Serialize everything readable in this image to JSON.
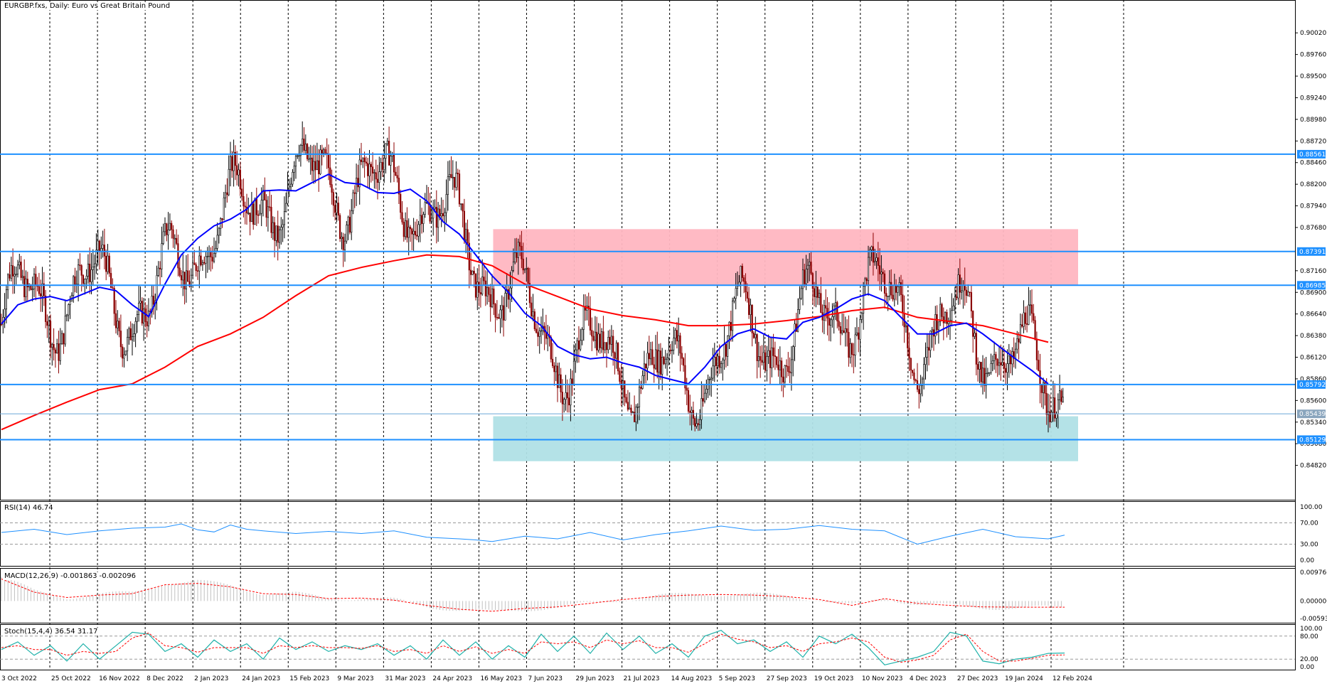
{
  "symbol_title": "EURGBP.fxs, Daily:  Euro vs Great Britain Pound",
  "rsi_label": "RSI(14) 46.74",
  "macd_label": "MACD(12,26,9) -0.001863 -0.002096",
  "stoch_label": "Stoch(15,4,4) 36.54 31.17",
  "colors": {
    "bull_candle": "#000000",
    "bear_candle": "#8b0000",
    "ma_fast": "#0000ff",
    "ma_slow": "#ff0000",
    "hline": "#1e90ff",
    "resistance_zone": "#ffb6c1",
    "support_zone": "#b0e0e6",
    "rsi_line": "#1e90ff",
    "macd_hist": "#c0c0c0",
    "macd_signal": "#ff0000",
    "stoch_main": "#20b2aa",
    "stoch_signal": "#ff0000"
  },
  "chart_data": [
    {
      "type": "candlestick",
      "title": "EURGBP.fxs, Daily:  Euro vs Great Britain Pound",
      "x_tick_labels": [
        "3 Oct 2022",
        "25 Oct 2022",
        "16 Nov 2022",
        "8 Dec 2022",
        "2 Jan 2023",
        "24 Jan 2023",
        "15 Feb 2023",
        "9 Mar 2023",
        "31 Mar 2023",
        "24 Apr 2023",
        "16 May 2023",
        "7 Jun 2023",
        "29 Jun 2023",
        "21 Jul 2023",
        "14 Aug 2023",
        "5 Sep 2023",
        "27 Sep 2023",
        "19 Oct 2023",
        "10 Nov 2023",
        "4 Dec 2023",
        "27 Dec 2023",
        "19 Jan 2024",
        "12 Feb 2024"
      ],
      "y_tick_labels": [
        "0.90020",
        "0.89760",
        "0.89500",
        "0.89240",
        "0.88980",
        "0.88720",
        "0.88460",
        "0.88200",
        "0.87940",
        "0.87680",
        "0.87160",
        "0.86900",
        "0.86640",
        "0.86380",
        "0.86120",
        "0.85860",
        "0.85600",
        "0.85340",
        "0.85080",
        "0.84820"
      ],
      "ylim": [
        0.8462,
        0.9021
      ],
      "series": [
        {
          "name": "",
          "kind": "moving-average-fast",
          "color": "#0000ff"
        },
        {
          "name": "",
          "kind": "moving-average-slow",
          "color": "#ff0000"
        }
      ],
      "horizontal_levels": [
        {
          "value": "0.88561",
          "label": "0.88561"
        },
        {
          "value": "0.87391",
          "label": "0.87391"
        },
        {
          "value": "0.86985",
          "label": "0.86985"
        },
        {
          "value": "0.85792",
          "label": "0.85792"
        },
        {
          "value": "0.85439",
          "label": "0.85439"
        },
        {
          "value": "0.85129",
          "label": "0.85129"
        }
      ],
      "zones": [
        {
          "name": "resistance",
          "y_from": 0.8699,
          "y_to": 0.8766,
          "x_from": "16 May 2023",
          "x_to": "12 Feb 2024"
        },
        {
          "name": "support",
          "y_from": 0.8487,
          "y_to": 0.8541,
          "x_from": "16 May 2023",
          "x_to": "12 Feb 2024"
        }
      ],
      "ma_fast_path": [
        [
          0,
          0.8652
        ],
        [
          10,
          0.8675
        ],
        [
          20,
          0.8682
        ],
        [
          30,
          0.8685
        ],
        [
          40,
          0.868
        ],
        [
          50,
          0.8688
        ],
        [
          60,
          0.8696
        ],
        [
          70,
          0.8692
        ],
        [
          80,
          0.8675
        ],
        [
          90,
          0.8661
        ],
        [
          100,
          0.87
        ],
        [
          110,
          0.8735
        ],
        [
          120,
          0.8755
        ],
        [
          130,
          0.877
        ],
        [
          140,
          0.8778
        ],
        [
          150,
          0.879
        ],
        [
          160,
          0.8812
        ],
        [
          170,
          0.8813
        ],
        [
          180,
          0.8812
        ],
        [
          190,
          0.8822
        ],
        [
          200,
          0.8832
        ],
        [
          210,
          0.8822
        ],
        [
          220,
          0.882
        ],
        [
          230,
          0.881
        ],
        [
          240,
          0.8809
        ],
        [
          250,
          0.8814
        ],
        [
          260,
          0.88
        ],
        [
          270,
          0.8775
        ],
        [
          280,
          0.876
        ],
        [
          290,
          0.8735
        ],
        [
          300,
          0.871
        ],
        [
          310,
          0.869
        ],
        [
          320,
          0.8665
        ],
        [
          330,
          0.865
        ],
        [
          340,
          0.8625
        ],
        [
          350,
          0.8615
        ],
        [
          360,
          0.861
        ],
        [
          370,
          0.8612
        ],
        [
          380,
          0.8605
        ],
        [
          390,
          0.86
        ],
        [
          400,
          0.859
        ],
        [
          410,
          0.8585
        ],
        [
          420,
          0.858
        ],
        [
          430,
          0.86
        ],
        [
          440,
          0.8625
        ],
        [
          450,
          0.864
        ],
        [
          460,
          0.8646
        ],
        [
          470,
          0.8636
        ],
        [
          480,
          0.8634
        ],
        [
          490,
          0.8654
        ],
        [
          500,
          0.866
        ],
        [
          510,
          0.867
        ],
        [
          520,
          0.8682
        ],
        [
          530,
          0.8688
        ],
        [
          540,
          0.868
        ],
        [
          550,
          0.866
        ],
        [
          560,
          0.864
        ],
        [
          570,
          0.864
        ],
        [
          580,
          0.865
        ],
        [
          590,
          0.8653
        ],
        [
          600,
          0.864
        ],
        [
          610,
          0.8625
        ],
        [
          620,
          0.861
        ],
        [
          630,
          0.8596
        ],
        [
          640,
          0.858
        ]
      ],
      "ma_slow_path": [
        [
          0,
          0.8525
        ],
        [
          20,
          0.8542
        ],
        [
          40,
          0.8558
        ],
        [
          60,
          0.8573
        ],
        [
          80,
          0.858
        ],
        [
          100,
          0.86
        ],
        [
          120,
          0.8625
        ],
        [
          140,
          0.864
        ],
        [
          160,
          0.866
        ],
        [
          180,
          0.8686
        ],
        [
          200,
          0.871
        ],
        [
          220,
          0.872
        ],
        [
          240,
          0.8728
        ],
        [
          260,
          0.8735
        ],
        [
          280,
          0.8733
        ],
        [
          300,
          0.8722
        ],
        [
          320,
          0.87
        ],
        [
          340,
          0.8685
        ],
        [
          360,
          0.867
        ],
        [
          380,
          0.8662
        ],
        [
          400,
          0.8657
        ],
        [
          420,
          0.865
        ],
        [
          440,
          0.865
        ],
        [
          460,
          0.8652
        ],
        [
          480,
          0.8656
        ],
        [
          500,
          0.8661
        ],
        [
          520,
          0.8668
        ],
        [
          540,
          0.8672
        ],
        [
          560,
          0.866
        ],
        [
          580,
          0.8655
        ],
        [
          600,
          0.865
        ],
        [
          620,
          0.864
        ],
        [
          640,
          0.863
        ]
      ]
    },
    {
      "type": "line",
      "title": "RSI(14) 46.74",
      "y_tick_labels": [
        "100.00",
        "70.00",
        "30.00",
        "0.00"
      ],
      "ylim": [
        0,
        100
      ],
      "reference_levels": [
        70,
        30
      ],
      "path": [
        [
          0,
          52
        ],
        [
          20,
          58
        ],
        [
          40,
          48
        ],
        [
          60,
          55
        ],
        [
          80,
          60
        ],
        [
          100,
          62
        ],
        [
          110,
          68
        ],
        [
          120,
          57
        ],
        [
          130,
          53
        ],
        [
          140,
          66
        ],
        [
          150,
          58
        ],
        [
          160,
          55
        ],
        [
          180,
          50
        ],
        [
          200,
          54
        ],
        [
          220,
          50
        ],
        [
          240,
          55
        ],
        [
          260,
          43
        ],
        [
          280,
          40
        ],
        [
          290,
          38
        ],
        [
          300,
          35
        ],
        [
          320,
          45
        ],
        [
          340,
          40
        ],
        [
          360,
          52
        ],
        [
          380,
          38
        ],
        [
          400,
          48
        ],
        [
          420,
          55
        ],
        [
          440,
          64
        ],
        [
          460,
          56
        ],
        [
          480,
          58
        ],
        [
          500,
          65
        ],
        [
          520,
          58
        ],
        [
          540,
          55
        ],
        [
          560,
          30
        ],
        [
          580,
          45
        ],
        [
          600,
          58
        ],
        [
          620,
          44
        ],
        [
          640,
          40
        ],
        [
          650,
          47
        ]
      ]
    },
    {
      "type": "bar",
      "title": "MACD(12,26,9) -0.001863 -0.002096",
      "y_tick_labels": [
        "0.009760",
        "0.000000",
        "-0.005930"
      ],
      "ylim": [
        -0.00593,
        0.00976
      ],
      "signal_path": [
        [
          0,
          0.0075
        ],
        [
          20,
          0.003
        ],
        [
          40,
          0.0012
        ],
        [
          60,
          0.002
        ],
        [
          80,
          0.0025
        ],
        [
          100,
          0.0055
        ],
        [
          120,
          0.006
        ],
        [
          140,
          0.0048
        ],
        [
          160,
          0.0025
        ],
        [
          180,
          0.0022
        ],
        [
          200,
          0.0008
        ],
        [
          220,
          0.001
        ],
        [
          240,
          0.0003
        ],
        [
          260,
          -0.0015
        ],
        [
          280,
          -0.0028
        ],
        [
          300,
          -0.0035
        ],
        [
          320,
          -0.0025
        ],
        [
          340,
          -0.002
        ],
        [
          360,
          -0.0008
        ],
        [
          380,
          0.0005
        ],
        [
          400,
          0.0015
        ],
        [
          420,
          0.002
        ],
        [
          440,
          0.0022
        ],
        [
          460,
          0.002
        ],
        [
          480,
          0.0015
        ],
        [
          500,
          0.0005
        ],
        [
          520,
          -0.0015
        ],
        [
          540,
          0.0008
        ],
        [
          560,
          -0.0008
        ],
        [
          580,
          -0.0015
        ],
        [
          600,
          -0.002
        ],
        [
          620,
          -0.0021
        ],
        [
          640,
          -0.0021
        ],
        [
          650,
          -0.0021
        ]
      ]
    },
    {
      "type": "line",
      "title": "Stoch(15,4,4) 36.54 31.17",
      "y_tick_labels": [
        "100.00",
        "80.00",
        "20.00",
        "0.00"
      ],
      "ylim": [
        0,
        100
      ],
      "reference_levels": [
        80,
        20
      ],
      "main_path": [
        [
          0,
          45
        ],
        [
          10,
          65
        ],
        [
          20,
          30
        ],
        [
          30,
          55
        ],
        [
          40,
          15
        ],
        [
          50,
          60
        ],
        [
          60,
          20
        ],
        [
          70,
          55
        ],
        [
          80,
          90
        ],
        [
          90,
          85
        ],
        [
          100,
          40
        ],
        [
          110,
          60
        ],
        [
          120,
          25
        ],
        [
          130,
          70
        ],
        [
          140,
          40
        ],
        [
          150,
          60
        ],
        [
          160,
          20
        ],
        [
          170,
          75
        ],
        [
          180,
          45
        ],
        [
          190,
          65
        ],
        [
          200,
          40
        ],
        [
          210,
          55
        ],
        [
          220,
          45
        ],
        [
          230,
          60
        ],
        [
          240,
          30
        ],
        [
          250,
          55
        ],
        [
          260,
          20
        ],
        [
          270,
          70
        ],
        [
          280,
          30
        ],
        [
          290,
          65
        ],
        [
          300,
          20
        ],
        [
          310,
          55
        ],
        [
          320,
          25
        ],
        [
          330,
          85
        ],
        [
          340,
          40
        ],
        [
          350,
          80
        ],
        [
          360,
          35
        ],
        [
          370,
          88
        ],
        [
          380,
          45
        ],
        [
          390,
          80
        ],
        [
          400,
          35
        ],
        [
          410,
          60
        ],
        [
          420,
          25
        ],
        [
          430,
          80
        ],
        [
          440,
          95
        ],
        [
          450,
          60
        ],
        [
          460,
          70
        ],
        [
          470,
          40
        ],
        [
          480,
          65
        ],
        [
          490,
          25
        ],
        [
          500,
          80
        ],
        [
          510,
          60
        ],
        [
          520,
          85
        ],
        [
          530,
          50
        ],
        [
          540,
          5
        ],
        [
          550,
          15
        ],
        [
          560,
          25
        ],
        [
          570,
          40
        ],
        [
          580,
          90
        ],
        [
          590,
          80
        ],
        [
          600,
          15
        ],
        [
          610,
          8
        ],
        [
          620,
          20
        ],
        [
          630,
          25
        ],
        [
          640,
          35
        ],
        [
          650,
          36
        ]
      ],
      "signal_path": [
        [
          0,
          50
        ],
        [
          10,
          55
        ],
        [
          20,
          45
        ],
        [
          30,
          45
        ],
        [
          40,
          30
        ],
        [
          50,
          40
        ],
        [
          60,
          35
        ],
        [
          70,
          40
        ],
        [
          80,
          75
        ],
        [
          90,
          88
        ],
        [
          100,
          55
        ],
        [
          110,
          50
        ],
        [
          120,
          38
        ],
        [
          130,
          50
        ],
        [
          140,
          50
        ],
        [
          150,
          50
        ],
        [
          160,
          35
        ],
        [
          170,
          55
        ],
        [
          180,
          50
        ],
        [
          190,
          55
        ],
        [
          200,
          50
        ],
        [
          210,
          50
        ],
        [
          220,
          48
        ],
        [
          230,
          55
        ],
        [
          240,
          40
        ],
        [
          250,
          45
        ],
        [
          260,
          35
        ],
        [
          270,
          55
        ],
        [
          280,
          40
        ],
        [
          290,
          52
        ],
        [
          300,
          35
        ],
        [
          310,
          45
        ],
        [
          320,
          35
        ],
        [
          330,
          65
        ],
        [
          340,
          60
        ],
        [
          350,
          65
        ],
        [
          360,
          50
        ],
        [
          370,
          70
        ],
        [
          380,
          60
        ],
        [
          390,
          68
        ],
        [
          400,
          50
        ],
        [
          410,
          50
        ],
        [
          420,
          38
        ],
        [
          430,
          60
        ],
        [
          440,
          85
        ],
        [
          450,
          72
        ],
        [
          460,
          65
        ],
        [
          470,
          50
        ],
        [
          480,
          55
        ],
        [
          490,
          40
        ],
        [
          500,
          60
        ],
        [
          510,
          65
        ],
        [
          520,
          75
        ],
        [
          530,
          65
        ],
        [
          540,
          25
        ],
        [
          550,
          12
        ],
        [
          560,
          18
        ],
        [
          570,
          30
        ],
        [
          580,
          70
        ],
        [
          590,
          85
        ],
        [
          600,
          40
        ],
        [
          610,
          15
        ],
        [
          620,
          15
        ],
        [
          630,
          22
        ],
        [
          640,
          30
        ],
        [
          650,
          31
        ]
      ]
    }
  ]
}
